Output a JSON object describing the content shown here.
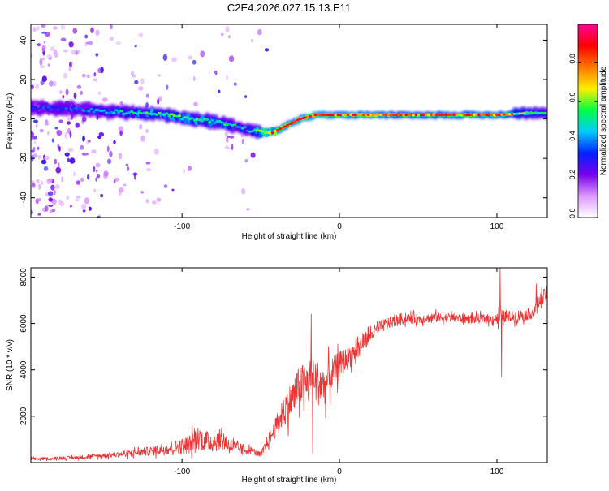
{
  "page_title": "C2E4.2026.027.15.13.E11",
  "chart_data": [
    {
      "type": "heatmap",
      "title": "C2E4.2026.027.15.13.E11",
      "xlabel": "Height of straight line (km)",
      "ylabel": "Frequency (Hz)",
      "xlim": [
        -196,
        132
      ],
      "ylim": [
        -50,
        48
      ],
      "xticks": [
        -100,
        0,
        100
      ],
      "xtick_labels": [
        "-100",
        "0",
        "100"
      ],
      "yticks": [
        -40,
        -20,
        0,
        20,
        40
      ],
      "ytick_labels": [
        "-40",
        "-20",
        "0",
        "20",
        "40"
      ],
      "colorbar": {
        "label": "Normalized spectral amplitude",
        "range": [
          0,
          1
        ],
        "ticks": [
          0,
          0.2,
          0.4,
          0.6,
          0.8
        ],
        "tick_labels": [
          "0.0",
          "0.2",
          "0.4",
          "0.6",
          "0.8"
        ],
        "colormap": [
          "#ffffff",
          "#dd99ff",
          "#7700ee",
          "#0022ff",
          "#00ccff",
          "#00ff44",
          "#ffee00",
          "#ff7700",
          "#ff0000",
          "#ff0099"
        ]
      },
      "ridge": {
        "x": [
          -196,
          -170,
          -150,
          -130,
          -110,
          -95,
          -85,
          -75,
          -65,
          -55,
          -48,
          -40,
          -35,
          -30,
          -25,
          -20,
          -15,
          -10,
          0,
          20,
          40,
          60,
          80,
          100,
          120,
          132
        ],
        "freq": [
          6,
          5,
          4,
          3,
          2,
          0,
          -1,
          -2,
          -4,
          -6,
          -7,
          -6,
          -4,
          -2,
          0,
          1,
          2,
          2,
          2,
          2,
          2,
          2,
          2,
          2,
          3,
          3
        ],
        "amp": [
          0.35,
          0.4,
          0.5,
          0.55,
          0.6,
          0.6,
          0.55,
          0.55,
          0.5,
          0.5,
          0.8,
          0.85,
          0.85,
          0.85,
          0.9,
          0.9,
          0.9,
          0.9,
          0.85,
          0.85,
          0.8,
          0.8,
          0.8,
          0.85,
          0.6,
          0.55
        ]
      }
    },
    {
      "type": "line",
      "xlabel": "Height of straight line (km)",
      "ylabel": "SNR (10 * v/v)",
      "xlim": [
        -196,
        132
      ],
      "ylim": [
        0,
        8400
      ],
      "xticks": [
        -100,
        0,
        100
      ],
      "xtick_labels": [
        "-100",
        "0",
        "100"
      ],
      "yticks": [
        2000,
        4000,
        6000,
        8000
      ],
      "ytick_labels": [
        "2000",
        "4000",
        "6000",
        "8000"
      ],
      "line_color": "#ee3333",
      "series": [
        {
          "name": "SNR",
          "x": [
            -196,
            -180,
            -160,
            -140,
            -120,
            -110,
            -100,
            -95,
            -90,
            -85,
            -80,
            -75,
            -70,
            -65,
            -60,
            -55,
            -50,
            -45,
            -42,
            -40,
            -35,
            -30,
            -25,
            -20,
            -15,
            -10,
            -5,
            0,
            5,
            10,
            15,
            20,
            25,
            30,
            35,
            40,
            50,
            60,
            70,
            80,
            90,
            100,
            102,
            103,
            105,
            110,
            120,
            124,
            125,
            128,
            132
          ],
          "values": [
            150,
            180,
            250,
            350,
            500,
            600,
            700,
            800,
            1100,
            900,
            900,
            1000,
            750,
            600,
            550,
            500,
            300,
            1000,
            1300,
            1600,
            2200,
            2800,
            3300,
            3400,
            3500,
            3300,
            3800,
            4200,
            4500,
            4800,
            5200,
            5500,
            5800,
            6000,
            6100,
            6200,
            6200,
            6250,
            6250,
            6200,
            6200,
            6200,
            6400,
            6300,
            6300,
            6300,
            6400,
            6500,
            6800,
            7000,
            7300
          ],
          "jitter": [
            60,
            60,
            80,
            120,
            200,
            280,
            350,
            400,
            500,
            450,
            450,
            450,
            350,
            300,
            200,
            150,
            120,
            300,
            350,
            450,
            700,
            800,
            900,
            1000,
            1000,
            900,
            700,
            600,
            500,
            450,
            400,
            300,
            300,
            250,
            250,
            250,
            200,
            200,
            200,
            200,
            200,
            200,
            700,
            300,
            250,
            250,
            250,
            250,
            300,
            350,
            350
          ]
        }
      ],
      "spikes": [
        {
          "x": -18,
          "value": 6400
        },
        {
          "x": -17,
          "value": 400
        },
        {
          "x": 102,
          "value": 8400
        },
        {
          "x": 103,
          "value": 3700
        },
        {
          "x": 125,
          "value": 7700
        }
      ]
    }
  ]
}
